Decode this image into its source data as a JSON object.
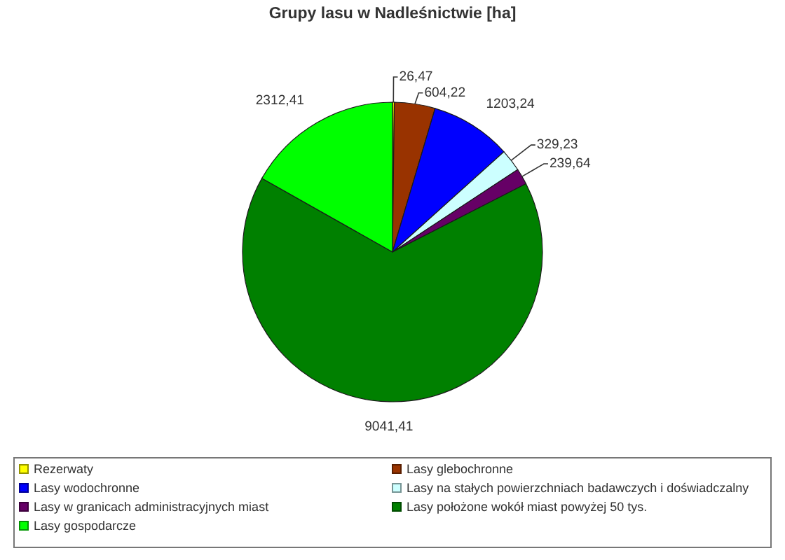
{
  "chart_data": {
    "type": "pie",
    "title": "Grupy lasu w Nadleśnictwie [ha]",
    "categories": [
      "Rezerwaty",
      "Lasy glebochronne",
      "Lasy wodochronne",
      "Lasy na stałych powierzchniach badawczych i doświadczalny",
      "Lasy w granicach administracyjnych miast",
      "Lasy położone wokół miast powyżej 50 tys.",
      "Lasy gospodarcze"
    ],
    "values": [
      26.47,
      604.22,
      1203.24,
      329.23,
      239.64,
      9041.41,
      2312.41
    ],
    "colors": [
      "#ffff00",
      "#993300",
      "#0000ff",
      "#ccffff",
      "#660066",
      "#008000",
      "#00ff00"
    ],
    "value_labels": [
      "26,47",
      "604,22",
      "1203,24",
      "329,23",
      "239,64",
      "9041,41",
      "2312,41"
    ],
    "legend": "bottom"
  }
}
